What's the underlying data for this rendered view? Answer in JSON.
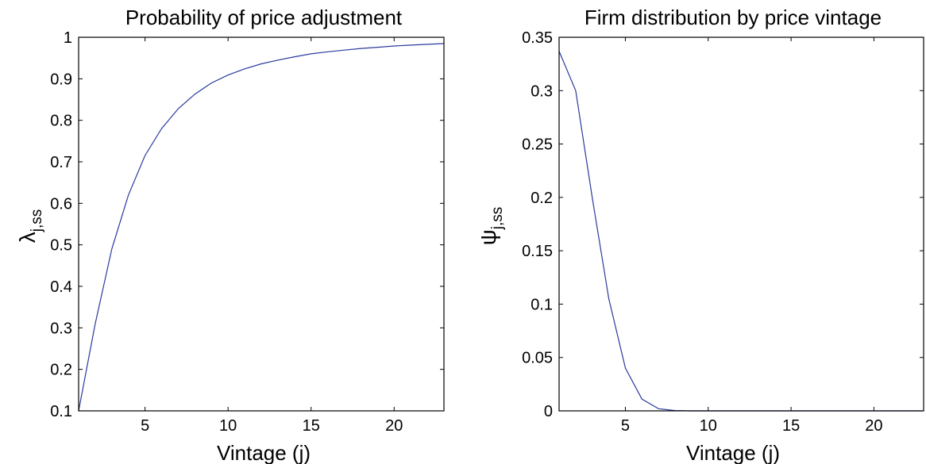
{
  "chart_data": [
    {
      "type": "line",
      "title": "Probability of price adjustment",
      "xlabel": "Vintage (j)",
      "ylabel": {
        "symbol": "λ",
        "subscript": "j,ss"
      },
      "xlim": [
        1,
        23
      ],
      "ylim": [
        0.1,
        1
      ],
      "xticks": [
        5,
        10,
        15,
        20
      ],
      "yticks": [
        0.1,
        0.2,
        0.3,
        0.4,
        0.5,
        0.6,
        0.7,
        0.8,
        0.9,
        1
      ],
      "ytick_labels": [
        "0.1",
        "0.2",
        "0.3",
        "0.4",
        "0.5",
        "0.6",
        "0.7",
        "0.8",
        "0.9",
        "1"
      ],
      "grid": false,
      "line_color": "#2a3a9c",
      "x": [
        1,
        2,
        3,
        4,
        5,
        6,
        7,
        8,
        9,
        10,
        11,
        12,
        13,
        14,
        15,
        16,
        17,
        18,
        19,
        20,
        21,
        22,
        23
      ],
      "y": [
        0.1,
        0.31,
        0.49,
        0.62,
        0.715,
        0.78,
        0.828,
        0.863,
        0.89,
        0.909,
        0.924,
        0.936,
        0.945,
        0.953,
        0.96,
        0.965,
        0.969,
        0.973,
        0.976,
        0.979,
        0.981,
        0.983,
        0.985
      ]
    },
    {
      "type": "line",
      "title": "Firm distribution by price vintage",
      "xlabel": "Vintage (j)",
      "ylabel": {
        "symbol": "ψ",
        "subscript": "j,ss"
      },
      "xlim": [
        1,
        23
      ],
      "ylim": [
        0,
        0.35
      ],
      "xticks": [
        5,
        10,
        15,
        20
      ],
      "yticks": [
        0,
        0.05,
        0.1,
        0.15,
        0.2,
        0.25,
        0.3,
        0.35
      ],
      "ytick_labels": [
        "0",
        "0.05",
        "0.1",
        "0.15",
        "0.2",
        "0.25",
        "0.3",
        "0.35"
      ],
      "grid": false,
      "line_color": "#2a3a9c",
      "x": [
        1,
        2,
        3,
        4,
        5,
        6,
        7,
        8,
        9,
        10,
        11,
        12,
        13,
        14,
        15,
        16,
        17,
        18,
        19,
        20,
        21,
        22,
        23
      ],
      "y": [
        0.337,
        0.3,
        0.2,
        0.105,
        0.04,
        0.011,
        0.002,
        0.0003,
        0,
        0,
        0,
        0,
        0,
        0,
        0,
        0,
        0,
        0,
        0,
        0,
        0,
        0,
        0
      ]
    }
  ]
}
